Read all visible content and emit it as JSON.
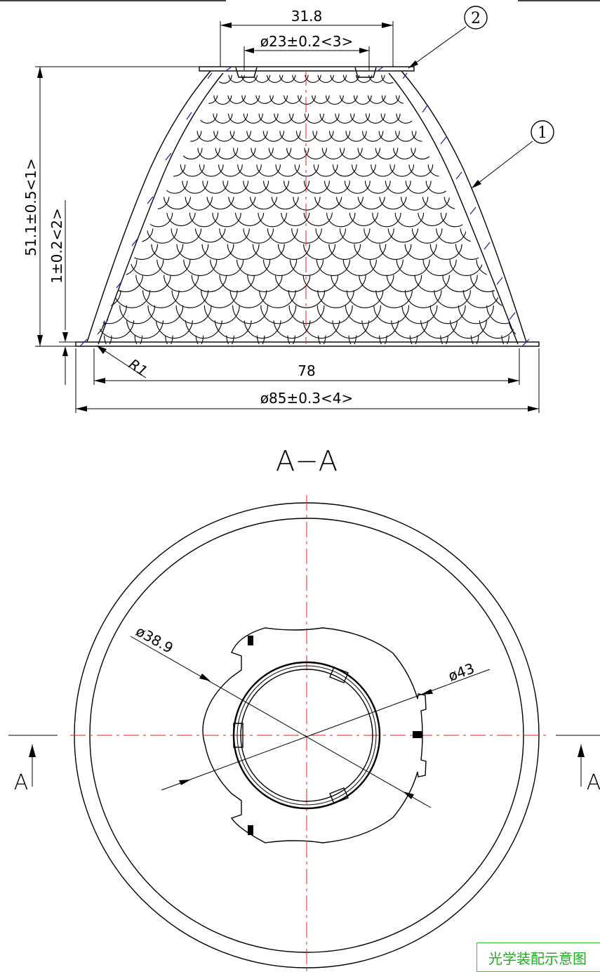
{
  "drawing": {
    "dimensions": {
      "top_width": "31.8",
      "top_diameter": "ø23±0.2<3>",
      "height": "51.1±0.5<1>",
      "flange_thickness": "1±0.2<2>",
      "fillet_radius": "R1",
      "bottom_inner": "78",
      "bottom_outer": "ø85±0.3<4>",
      "plan_diameter_inner": "ø38.9",
      "plan_diameter_outer": "ø43"
    },
    "balloons": {
      "item1": "1",
      "item2": "2"
    },
    "section_title": "A−A",
    "section_marker": "A",
    "note": "光学装配示意图"
  },
  "colors": {
    "outline": "#000000",
    "centerline": "#e02020",
    "hatch": "#1a1aa8",
    "note_border": "#2fbf2f",
    "note_text": "#22aa22"
  }
}
